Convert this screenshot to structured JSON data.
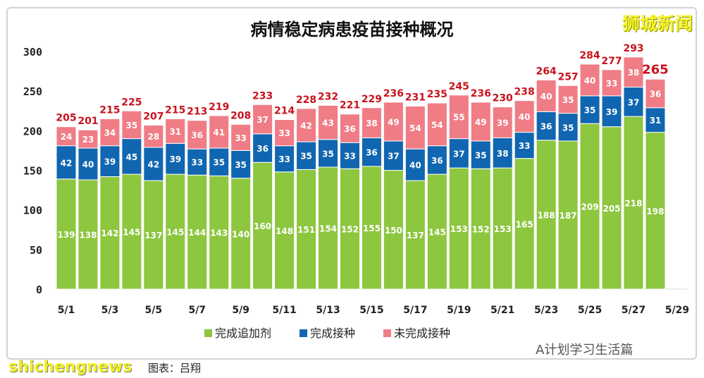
{
  "brand": "狮城新闻",
  "watermark_en": "shichengnews",
  "watermark_cn": "图表：吕翔",
  "watermark_right": "A计划学习生活篇",
  "colors": {
    "booster": "#8dc63f",
    "completed": "#1066b0",
    "incomplete": "#f07c85",
    "total_label": "#c8121d"
  },
  "chart_data": {
    "type": "bar",
    "stacked": true,
    "title": "病情稳定病患疫苗接种概况",
    "categories": [
      "5/1",
      "5/2",
      "5/3",
      "5/4",
      "5/5",
      "5/6",
      "5/7",
      "5/8",
      "5/9",
      "5/10",
      "5/11",
      "5/12",
      "5/13",
      "5/14",
      "5/15",
      "5/16",
      "5/17",
      "5/18",
      "5/19",
      "5/20",
      "5/21",
      "5/22",
      "5/23",
      "5/24",
      "5/25",
      "5/26",
      "5/27",
      "5/28"
    ],
    "x_tick_labels": [
      "5/1",
      "5/3",
      "5/5",
      "5/7",
      "5/9",
      "5/11",
      "5/13",
      "5/15",
      "5/17",
      "5/19",
      "5/21",
      "5/23",
      "5/25",
      "5/27",
      "5/29"
    ],
    "series": [
      {
        "name": "完成追加剂",
        "values": [
          139,
          138,
          142,
          145,
          137,
          145,
          144,
          143,
          140,
          160,
          148,
          151,
          154,
          152,
          155,
          150,
          137,
          145,
          153,
          152,
          153,
          165,
          188,
          187,
          209,
          205,
          218,
          198
        ]
      },
      {
        "name": "完成接种",
        "values": [
          42,
          40,
          39,
          45,
          42,
          39,
          33,
          35,
          35,
          36,
          33,
          35,
          35,
          33,
          36,
          37,
          40,
          36,
          37,
          35,
          38,
          33,
          36,
          35,
          35,
          39,
          37,
          31
        ]
      },
      {
        "name": "未完成接种",
        "values": [
          24,
          23,
          34,
          35,
          28,
          31,
          36,
          41,
          33,
          37,
          33,
          42,
          43,
          36,
          38,
          49,
          54,
          54,
          55,
          49,
          39,
          40,
          40,
          35,
          40,
          33,
          38,
          36
        ]
      }
    ],
    "totals": [
      205,
      201,
      215,
      225,
      207,
      215,
      213,
      219,
      208,
      233,
      214,
      228,
      232,
      221,
      229,
      236,
      231,
      235,
      245,
      236,
      230,
      238,
      264,
      257,
      284,
      277,
      293,
      265
    ],
    "ylim": [
      0,
      300
    ],
    "yticks": [
      0,
      50,
      100,
      150,
      200,
      250,
      300
    ],
    "grid": false,
    "legend": "bottom"
  }
}
